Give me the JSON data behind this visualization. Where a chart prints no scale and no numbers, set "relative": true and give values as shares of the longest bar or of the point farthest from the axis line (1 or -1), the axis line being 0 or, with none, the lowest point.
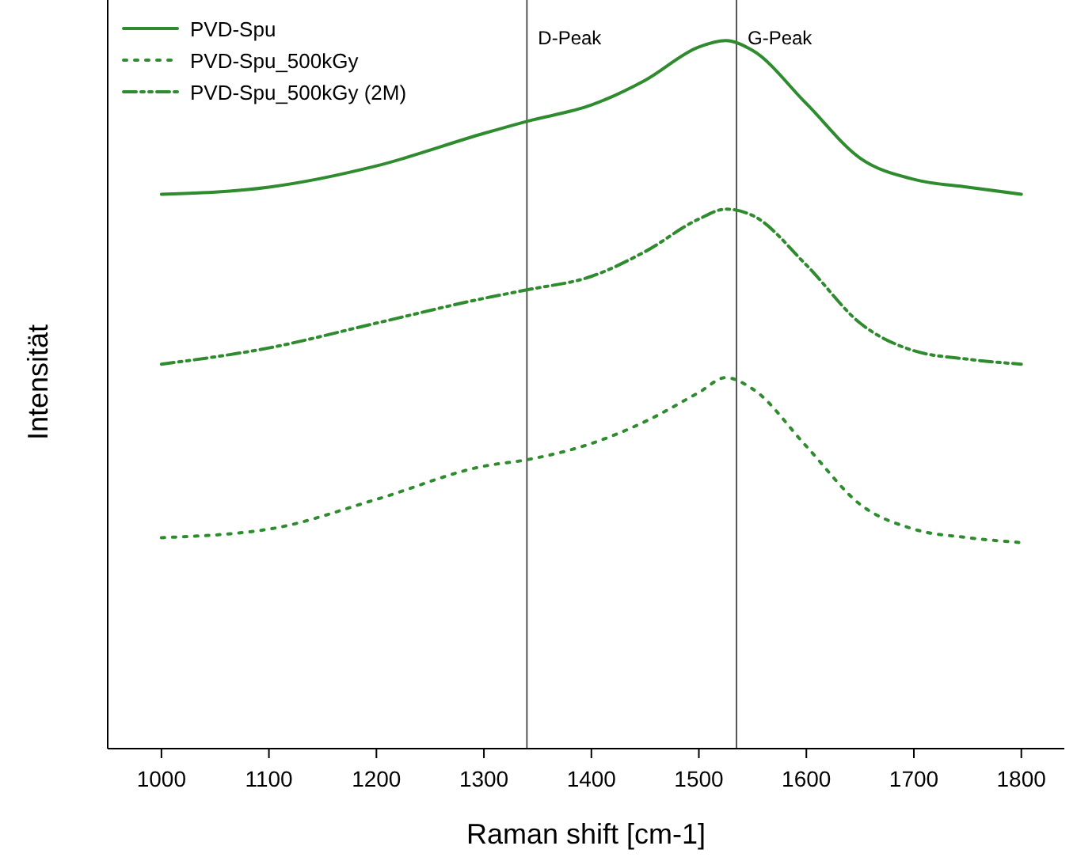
{
  "chart_data": {
    "type": "line",
    "relative": true,
    "xlabel": "Raman shift [cm-1]",
    "ylabel": "Intensität",
    "xlim": [
      950,
      1840
    ],
    "xticks": [
      1000,
      1100,
      1200,
      1300,
      1400,
      1500,
      1600,
      1700,
      1800
    ],
    "legend": "top left",
    "x": [
      1000,
      1100,
      1200,
      1300,
      1340,
      1400,
      1450,
      1500,
      1525,
      1550,
      1600,
      1650,
      1700,
      1750,
      1800
    ],
    "series": [
      {
        "name": "PVD-Spu",
        "color": "#2e8b2e",
        "line_style": "solid",
        "values": [
          0.783,
          0.793,
          0.823,
          0.869,
          0.886,
          0.909,
          0.944,
          0.991,
          1,
          0.986,
          0.911,
          0.834,
          0.804,
          0.793,
          0.783
        ]
      },
      {
        "name": "PVD-Spu_500kGy",
        "color": "#2e8b2e",
        "line_style": "dotted",
        "values": [
          0.298,
          0.31,
          0.352,
          0.399,
          0.408,
          0.431,
          0.462,
          0.503,
          0.524,
          0.508,
          0.427,
          0.345,
          0.31,
          0.298,
          0.291
        ]
      },
      {
        "name": "PVD-Spu_500kGy (2M)",
        "color": "#2e8b2e",
        "line_style": "dashdot",
        "values": [
          0.543,
          0.566,
          0.601,
          0.636,
          0.648,
          0.667,
          0.702,
          0.748,
          0.762,
          0.753,
          0.683,
          0.601,
          0.562,
          0.55,
          0.543
        ]
      }
    ],
    "ref_lines": [
      {
        "axis": "x",
        "value": 1340,
        "label": "D-Peak",
        "color": "#555555"
      },
      {
        "axis": "x",
        "value": 1535,
        "label": "G-Peak",
        "color": "#555555"
      }
    ]
  }
}
